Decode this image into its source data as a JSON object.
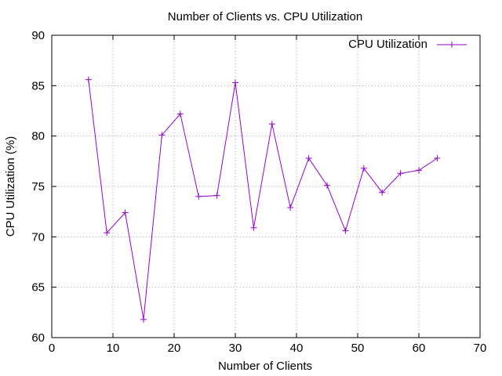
{
  "chart_data": {
    "type": "line",
    "title": "Number of Clients vs. CPU Utilization",
    "xlabel": "Number of Clients",
    "ylabel": "CPU Utilization (%)",
    "xlim": [
      0,
      70
    ],
    "ylim": [
      60,
      90
    ],
    "xticks": [
      "0",
      "10",
      "20",
      "30",
      "40",
      "50",
      "60",
      "70"
    ],
    "yticks": [
      "60",
      "65",
      "70",
      "75",
      "80",
      "85",
      "90"
    ],
    "grid": true,
    "legend_position": "top-right",
    "series": [
      {
        "name": "CPU Utilization",
        "color": "#9400D3",
        "marker": "plus",
        "x": [
          6,
          9,
          12,
          15,
          18,
          21,
          24,
          27,
          30,
          33,
          36,
          39,
          42,
          45,
          48,
          51,
          54,
          57,
          60,
          63
        ],
        "y": [
          85.6,
          70.4,
          72.4,
          61.8,
          80.1,
          82.2,
          74.0,
          74.1,
          85.3,
          70.9,
          81.2,
          72.9,
          77.8,
          75.1,
          70.6,
          76.8,
          74.4,
          76.3,
          76.6,
          77.8
        ]
      }
    ]
  }
}
